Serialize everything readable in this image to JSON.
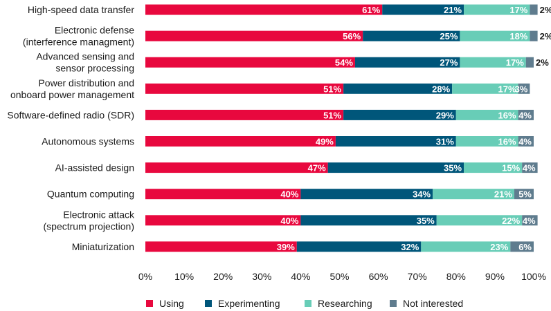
{
  "chart_data": {
    "type": "bar",
    "orientation": "horizontal",
    "stacked": true,
    "categories": [
      "High-speed data transfer",
      "Electronic defense\n(interference managment)",
      "Advanced sensing and\nsensor processing",
      "Power distribution and\nonboard power management",
      "Software-defined radio (SDR)",
      "Autonomous systems",
      "AI-assisted design",
      "Quantum computing",
      "Electronic attack\n(spectrum projection)",
      "Miniaturization"
    ],
    "series": [
      {
        "name": "Using",
        "color": "#e8083e",
        "values": [
          61,
          56,
          54,
          51,
          51,
          49,
          47,
          40,
          40,
          39
        ]
      },
      {
        "name": "Experimenting",
        "color": "#00567a",
        "values": [
          21,
          25,
          27,
          28,
          29,
          31,
          35,
          34,
          35,
          32
        ]
      },
      {
        "name": "Researching",
        "color": "#68cdb7",
        "values": [
          17,
          18,
          17,
          17,
          16,
          16,
          15,
          21,
          22,
          23
        ]
      },
      {
        "name": "Not interested",
        "color": "#5f7c8e",
        "values": [
          2,
          2,
          2,
          3,
          4,
          4,
          4,
          5,
          4,
          6
        ]
      }
    ],
    "xlim": [
      0,
      100
    ],
    "xticks": [
      "0%",
      "10%",
      "20%",
      "30%",
      "40%",
      "50%",
      "60%",
      "70%",
      "80%",
      "90%",
      "100%"
    ],
    "value_suffix": "%",
    "legend_position": "bottom",
    "grid": false
  }
}
